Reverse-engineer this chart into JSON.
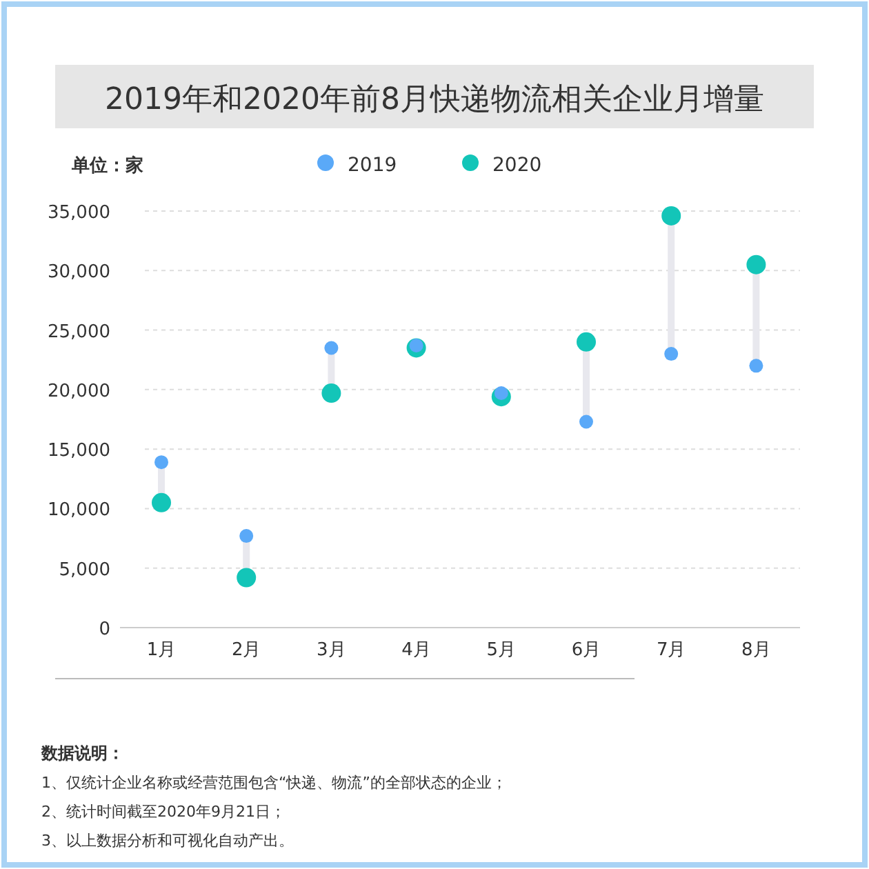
{
  "chart_data": {
    "type": "scatter",
    "title": "2019年和2020年前8月快递物流相关企业月增量",
    "categories": [
      "1月",
      "2月",
      "3月",
      "4月",
      "5月",
      "6月",
      "7月",
      "8月"
    ],
    "series": [
      {
        "name": "2019",
        "color": "#5aa9f8",
        "values": [
          13900,
          7700,
          23500,
          23700,
          19700,
          17300,
          23000,
          22000
        ]
      },
      {
        "name": "2020",
        "color": "#13c5b8",
        "values": [
          10500,
          4200,
          19700,
          23500,
          19400,
          24000,
          34600,
          30500
        ]
      }
    ],
    "ylim": [
      0,
      35000
    ],
    "yticks": [
      {
        "value": 0,
        "label": "0"
      },
      {
        "value": 5000,
        "label": "5,000"
      },
      {
        "value": 10000,
        "label": "10,000"
      },
      {
        "value": 15000,
        "label": "15,000"
      },
      {
        "value": 20000,
        "label": "20,000"
      },
      {
        "value": 25000,
        "label": "25,000"
      },
      {
        "value": 30000,
        "label": "30,000"
      },
      {
        "value": 35000,
        "label": "35,000"
      }
    ],
    "grid": "y",
    "legend": "top",
    "marker": "circle",
    "annotations": [
      "单位：家",
      "数据说明：",
      "1、仅统计企业名称或经营范围包含“快递、物流”的全部状态的企业；",
      "2、统计时间截至2020年9月21日；",
      "3、以上数据分析和可视化自动产出。"
    ]
  }
}
